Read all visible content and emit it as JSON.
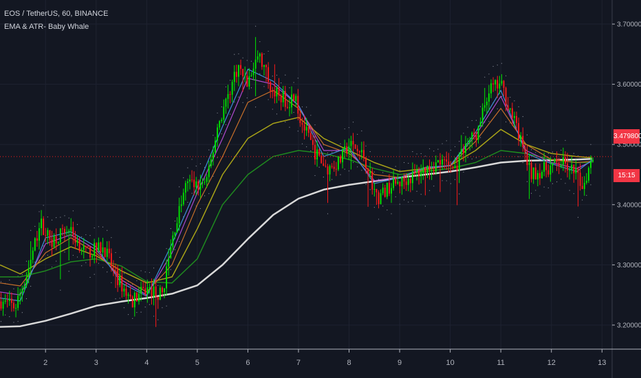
{
  "header": {
    "symbol_line": "EOS / TetherUS, 60, BINANCE",
    "indicator_line": "EMA & ATR- Baby Whale"
  },
  "price_tag": {
    "value": "3.47980000",
    "countdown": "15:15",
    "color": "#f23645"
  },
  "colors": {
    "background": "#131722",
    "grid": "#1e2230",
    "axis_text": "#b2b5be",
    "up": "#00e600",
    "down": "#ff1a1a",
    "sma200": "#d9d9d9"
  },
  "chart_data": {
    "type": "candlestick",
    "symbol": "EOS / TetherUS",
    "interval": "60",
    "exchange": "BINANCE",
    "x_ticks": [
      "2",
      "3",
      "4",
      "5",
      "6",
      "7",
      "8",
      "9",
      "10",
      "11",
      "12",
      "13"
    ],
    "y_ticks": [
      "3.20000000",
      "3.30000000",
      "3.40000000",
      "3.50000000",
      "3.60000000",
      "3.70000000"
    ],
    "ylim": [
      3.16,
      3.74
    ],
    "xlim_days": [
      1.1,
      13.2
    ],
    "last_price": 3.4798,
    "grid": true,
    "price_path": [
      [
        1.1,
        3.24
      ],
      [
        1.4,
        3.23
      ],
      [
        1.65,
        3.29
      ],
      [
        1.9,
        3.37
      ],
      [
        2.1,
        3.34
      ],
      [
        2.45,
        3.36
      ],
      [
        2.8,
        3.32
      ],
      [
        3.15,
        3.33
      ],
      [
        3.4,
        3.28
      ],
      [
        3.7,
        3.24
      ],
      [
        4.0,
        3.26
      ],
      [
        4.3,
        3.25
      ],
      [
        4.55,
        3.36
      ],
      [
        4.8,
        3.44
      ],
      [
        5.0,
        3.43
      ],
      [
        5.2,
        3.44
      ],
      [
        5.4,
        3.53
      ],
      [
        5.6,
        3.58
      ],
      [
        5.8,
        3.63
      ],
      [
        6.0,
        3.6
      ],
      [
        6.2,
        3.65
      ],
      [
        6.5,
        3.59
      ],
      [
        6.8,
        3.57
      ],
      [
        6.95,
        3.59
      ],
      [
        7.0,
        3.55
      ],
      [
        7.3,
        3.49
      ],
      [
        7.55,
        3.46
      ],
      [
        7.8,
        3.47
      ],
      [
        8.0,
        3.5
      ],
      [
        8.3,
        3.48
      ],
      [
        8.55,
        3.41
      ],
      [
        8.8,
        3.43
      ],
      [
        9.1,
        3.44
      ],
      [
        9.5,
        3.46
      ],
      [
        9.8,
        3.47
      ],
      [
        10.1,
        3.46
      ],
      [
        10.3,
        3.5
      ],
      [
        10.55,
        3.52
      ],
      [
        10.75,
        3.59
      ],
      [
        11.0,
        3.6
      ],
      [
        11.3,
        3.53
      ],
      [
        11.6,
        3.45
      ],
      [
        11.9,
        3.46
      ],
      [
        12.2,
        3.47
      ],
      [
        12.5,
        3.45
      ],
      [
        12.62,
        3.43
      ],
      [
        12.8,
        3.48
      ]
    ],
    "series": [
      {
        "color": "#d9d9d9",
        "width": 2.5,
        "points": [
          [
            1.1,
            3.197
          ],
          [
            1.5,
            3.198
          ],
          [
            2.0,
            3.207
          ],
          [
            2.5,
            3.219
          ],
          [
            3.0,
            3.232
          ],
          [
            3.5,
            3.239
          ],
          [
            4.0,
            3.245
          ],
          [
            4.5,
            3.252
          ],
          [
            5.0,
            3.266
          ],
          [
            5.5,
            3.3
          ],
          [
            6.0,
            3.343
          ],
          [
            6.5,
            3.383
          ],
          [
            7.0,
            3.41
          ],
          [
            7.5,
            3.425
          ],
          [
            8.0,
            3.433
          ],
          [
            8.5,
            3.439
          ],
          [
            9.0,
            3.445
          ],
          [
            9.5,
            3.45
          ],
          [
            10.0,
            3.455
          ],
          [
            10.5,
            3.462
          ],
          [
            11.0,
            3.47
          ],
          [
            11.5,
            3.473
          ],
          [
            12.0,
            3.474
          ],
          [
            12.5,
            3.475
          ],
          [
            12.8,
            3.476
          ]
        ]
      },
      {
        "color": "#1f8a1f",
        "width": 1.5,
        "points": [
          [
            1.1,
            3.28
          ],
          [
            1.5,
            3.28
          ],
          [
            2.0,
            3.29
          ],
          [
            2.5,
            3.305
          ],
          [
            3.0,
            3.31
          ],
          [
            3.5,
            3.298
          ],
          [
            4.0,
            3.272
          ],
          [
            4.5,
            3.27
          ],
          [
            5.0,
            3.31
          ],
          [
            5.5,
            3.4
          ],
          [
            6.0,
            3.45
          ],
          [
            6.5,
            3.48
          ],
          [
            7.0,
            3.49
          ],
          [
            7.5,
            3.485
          ],
          [
            8.0,
            3.475
          ],
          [
            8.5,
            3.46
          ],
          [
            9.0,
            3.45
          ],
          [
            9.5,
            3.455
          ],
          [
            10.0,
            3.46
          ],
          [
            10.5,
            3.47
          ],
          [
            11.0,
            3.49
          ],
          [
            11.5,
            3.485
          ],
          [
            12.0,
            3.475
          ],
          [
            12.5,
            3.47
          ],
          [
            12.8,
            3.47
          ]
        ]
      },
      {
        "color": "#a9a318",
        "width": 1.5,
        "points": [
          [
            1.1,
            3.3
          ],
          [
            1.5,
            3.285
          ],
          [
            2.0,
            3.31
          ],
          [
            2.5,
            3.33
          ],
          [
            3.0,
            3.315
          ],
          [
            3.5,
            3.29
          ],
          [
            4.0,
            3.27
          ],
          [
            4.5,
            3.28
          ],
          [
            5.0,
            3.36
          ],
          [
            5.5,
            3.45
          ],
          [
            6.0,
            3.51
          ],
          [
            6.5,
            3.535
          ],
          [
            7.0,
            3.545
          ],
          [
            7.5,
            3.51
          ],
          [
            8.0,
            3.49
          ],
          [
            8.5,
            3.47
          ],
          [
            9.0,
            3.455
          ],
          [
            9.5,
            3.46
          ],
          [
            10.0,
            3.465
          ],
          [
            10.5,
            3.49
          ],
          [
            11.0,
            3.525
          ],
          [
            11.5,
            3.5
          ],
          [
            12.0,
            3.485
          ],
          [
            12.5,
            3.48
          ],
          [
            12.8,
            3.478
          ]
        ]
      },
      {
        "color": "#c8702a",
        "width": 1.2,
        "points": [
          [
            1.1,
            3.27
          ],
          [
            1.5,
            3.265
          ],
          [
            2.0,
            3.32
          ],
          [
            2.5,
            3.345
          ],
          [
            3.0,
            3.32
          ],
          [
            3.5,
            3.28
          ],
          [
            4.0,
            3.255
          ],
          [
            4.5,
            3.3
          ],
          [
            5.0,
            3.4
          ],
          [
            5.5,
            3.48
          ],
          [
            6.0,
            3.57
          ],
          [
            6.5,
            3.59
          ],
          [
            7.0,
            3.56
          ],
          [
            7.5,
            3.5
          ],
          [
            8.0,
            3.485
          ],
          [
            8.5,
            3.45
          ],
          [
            9.0,
            3.445
          ],
          [
            9.5,
            3.458
          ],
          [
            10.0,
            3.465
          ],
          [
            10.5,
            3.505
          ],
          [
            11.0,
            3.56
          ],
          [
            11.5,
            3.5
          ],
          [
            12.0,
            3.475
          ],
          [
            12.5,
            3.47
          ],
          [
            12.8,
            3.472
          ]
        ]
      },
      {
        "color": "#b04ad0",
        "width": 1.2,
        "points": [
          [
            1.1,
            3.255
          ],
          [
            1.5,
            3.25
          ],
          [
            2.0,
            3.335
          ],
          [
            2.5,
            3.35
          ],
          [
            3.0,
            3.325
          ],
          [
            3.5,
            3.275
          ],
          [
            4.0,
            3.25
          ],
          [
            4.5,
            3.32
          ],
          [
            5.0,
            3.42
          ],
          [
            5.5,
            3.51
          ],
          [
            6.0,
            3.61
          ],
          [
            6.5,
            3.6
          ],
          [
            7.0,
            3.565
          ],
          [
            7.5,
            3.49
          ],
          [
            8.0,
            3.49
          ],
          [
            8.5,
            3.44
          ],
          [
            9.0,
            3.445
          ],
          [
            9.5,
            3.46
          ],
          [
            10.0,
            3.465
          ],
          [
            10.5,
            3.515
          ],
          [
            11.0,
            3.58
          ],
          [
            11.5,
            3.49
          ],
          [
            12.0,
            3.47
          ],
          [
            12.5,
            3.46
          ],
          [
            12.8,
            3.472
          ]
        ]
      },
      {
        "color": "#3f8fd9",
        "width": 1.2,
        "points": [
          [
            1.1,
            3.245
          ],
          [
            1.5,
            3.24
          ],
          [
            2.0,
            3.345
          ],
          [
            2.5,
            3.355
          ],
          [
            3.0,
            3.33
          ],
          [
            3.5,
            3.27
          ],
          [
            4.0,
            3.248
          ],
          [
            4.5,
            3.335
          ],
          [
            5.0,
            3.43
          ],
          [
            5.5,
            3.53
          ],
          [
            6.0,
            3.625
          ],
          [
            6.5,
            3.605
          ],
          [
            7.0,
            3.565
          ],
          [
            7.5,
            3.48
          ],
          [
            8.0,
            3.495
          ],
          [
            8.5,
            3.435
          ],
          [
            9.0,
            3.445
          ],
          [
            9.5,
            3.462
          ],
          [
            10.0,
            3.465
          ],
          [
            10.5,
            3.52
          ],
          [
            11.0,
            3.59
          ],
          [
            11.5,
            3.485
          ],
          [
            12.0,
            3.468
          ],
          [
            12.5,
            3.455
          ],
          [
            12.8,
            3.474
          ]
        ]
      }
    ]
  }
}
